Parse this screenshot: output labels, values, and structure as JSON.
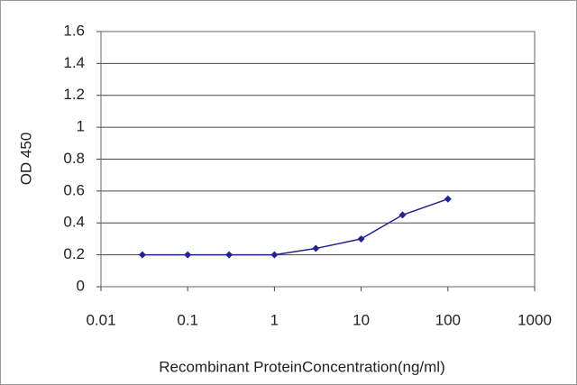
{
  "chart_data": {
    "type": "line",
    "x_label": "Recombinant ProteinConcentration(ng/ml)",
    "y_label": "OD 450",
    "x": [
      0.03,
      0.1,
      0.3,
      1,
      3,
      10,
      30,
      100
    ],
    "values": [
      0.2,
      0.2,
      0.2,
      0.2,
      0.24,
      0.3,
      0.45,
      0.55
    ],
    "color": "#23238e",
    "x_log": true,
    "xlim": [
      0.01,
      1000
    ],
    "xticks": [
      0.01,
      0.1,
      1,
      10,
      100,
      1000
    ],
    "ylim": [
      0,
      1.6
    ],
    "yticks": [
      0,
      0.2,
      0.4,
      0.6,
      0.8,
      1,
      1.2,
      1.4,
      1.6
    ],
    "grid": true
  }
}
